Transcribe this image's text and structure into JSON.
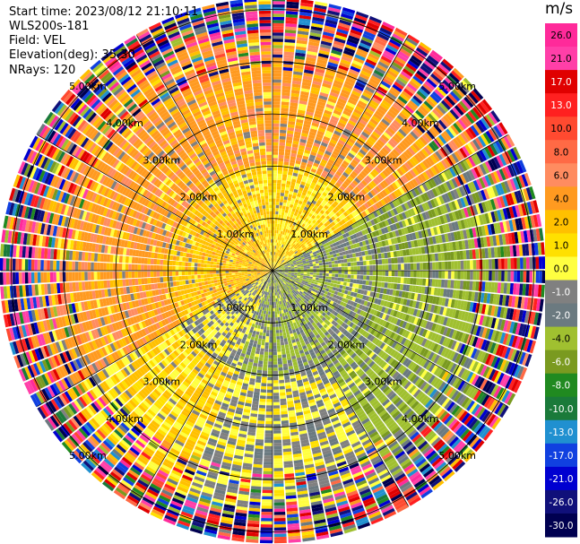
{
  "info": {
    "start_time": "Start time: 2023/08/12 21:10:11",
    "instrument": "WLS200s-181",
    "field": "Field: VEL",
    "elevation": "Elevation(deg): 35.30",
    "nrays": "NRays: 120"
  },
  "colorbar": {
    "unit": "m/s",
    "ticks": [
      "26.0",
      "21.0",
      "17.0",
      "13.0",
      "10.0",
      "8.0",
      "6.0",
      "4.0",
      "2.0",
      "1.0",
      "0.0",
      "-1.0",
      "-2.0",
      "-4.0",
      "-6.0",
      "-8.0",
      "-10.0",
      "-13.0",
      "-17.0",
      "-21.0",
      "-26.0",
      "-30.0"
    ],
    "colors": [
      "#ff2a9a",
      "#ff3fa8",
      "#e00000",
      "#ff2020",
      "#ff4a30",
      "#ff6a45",
      "#ff8c60",
      "#ff9a20",
      "#ffc000",
      "#ffe000",
      "#ffff40",
      "#808080",
      "#6b7a80",
      "#a0c030",
      "#7a9a20",
      "#208a20",
      "#1a7a3a",
      "#2090d0",
      "#1040e0",
      "#0000d0",
      "#10107a",
      "#000050"
    ]
  },
  "chart_data": {
    "type": "heatmap",
    "projection": "polar-ppi",
    "field": "VEL",
    "units": "m/s",
    "nrays": 120,
    "elevation_deg": 35.3,
    "range_rings_km": [
      1.0,
      2.0,
      3.0,
      4.0,
      5.0
    ],
    "ring_labels": [
      "1.00km",
      "2.00km",
      "3.00km",
      "4.00km",
      "5.00km"
    ],
    "color_scale": [
      -30.0,
      -26.0,
      -21.0,
      -17.0,
      -13.0,
      -10.0,
      -8.0,
      -6.0,
      -4.0,
      -2.0,
      -1.0,
      0.0,
      1.0,
      2.0,
      4.0,
      6.0,
      8.0,
      10.0,
      13.0,
      17.0,
      21.0,
      26.0
    ],
    "sectors": [
      {
        "azimuth_deg": [
          0,
          60
        ],
        "velocity_inner_ms": 2.0,
        "velocity_mid_ms": 5.0
      },
      {
        "azimuth_deg": [
          60,
          150
        ],
        "velocity_inner_ms": -2.0,
        "velocity_mid_ms": -3.0
      },
      {
        "azimuth_deg": [
          150,
          200
        ],
        "velocity_inner_ms": -2.0,
        "velocity_mid_ms": 0.0
      },
      {
        "azimuth_deg": [
          200,
          240
        ],
        "velocity_inner_ms": 0.0,
        "velocity_mid_ms": 2.0
      },
      {
        "azimuth_deg": [
          240,
          330
        ],
        "velocity_inner_ms": 3.0,
        "velocity_mid_ms": 5.0
      },
      {
        "azimuth_deg": [
          330,
          360
        ],
        "velocity_inner_ms": 2.0,
        "velocity_mid_ms": 5.0
      }
    ],
    "outer_zone": "noise (random velocities) beyond 4.5km"
  }
}
